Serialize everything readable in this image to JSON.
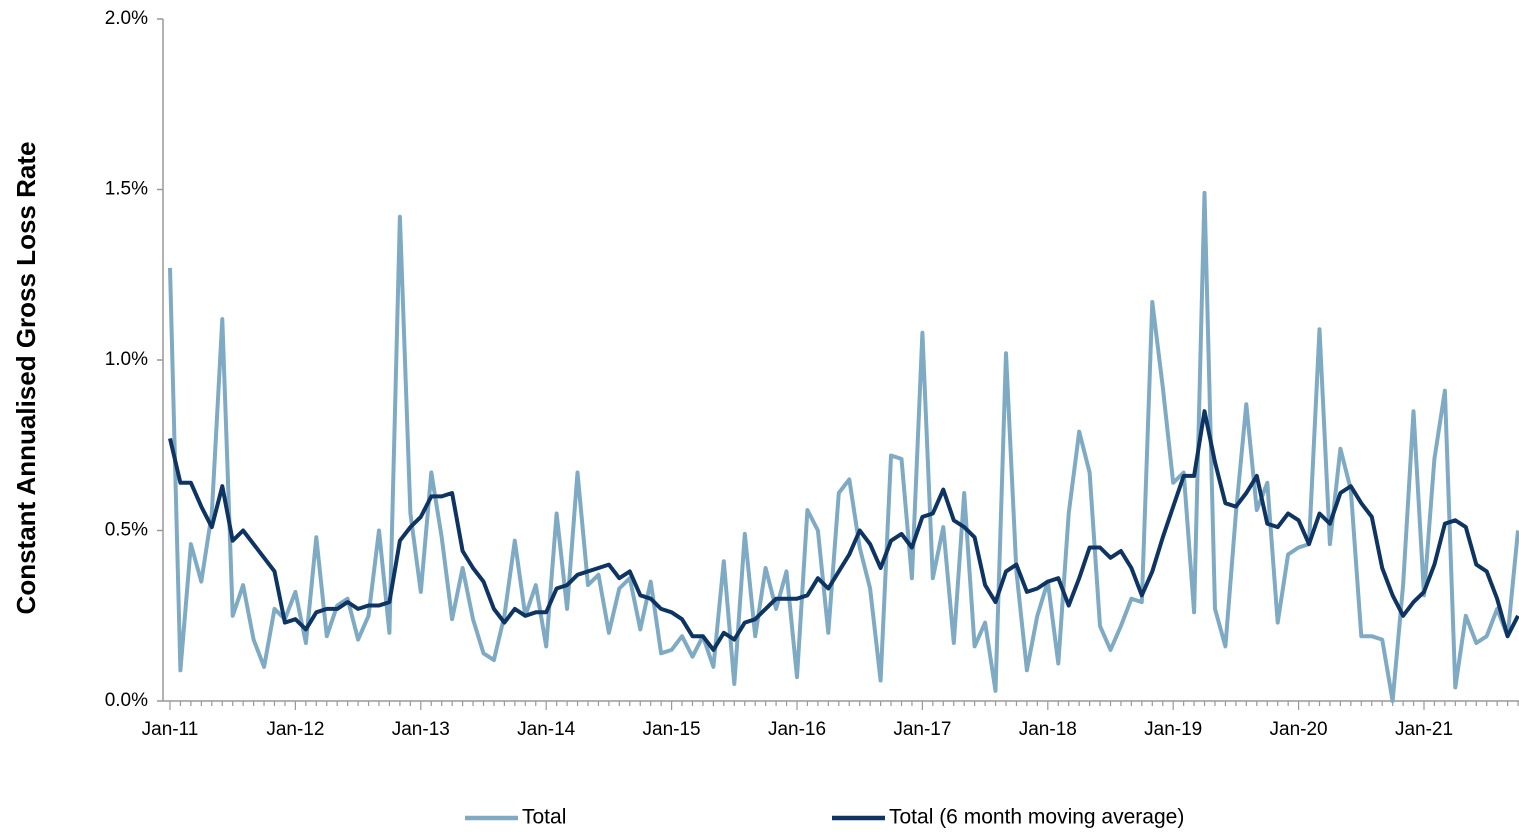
{
  "chart_data": {
    "type": "line",
    "y_label": "Constant Annualised Gross Loss Rate",
    "categories": [
      "Jan-11",
      null,
      null,
      null,
      null,
      null,
      null,
      null,
      null,
      null,
      null,
      null,
      "Jan-12",
      null,
      null,
      null,
      null,
      null,
      null,
      null,
      null,
      null,
      null,
      null,
      "Jan-13",
      null,
      null,
      null,
      null,
      null,
      null,
      null,
      null,
      null,
      null,
      null,
      "Jan-14",
      null,
      null,
      null,
      null,
      null,
      null,
      null,
      null,
      null,
      null,
      null,
      "Jan-15",
      null,
      null,
      null,
      null,
      null,
      null,
      null,
      null,
      null,
      null,
      null,
      "Jan-16",
      null,
      null,
      null,
      null,
      null,
      null,
      null,
      null,
      null,
      null,
      null,
      "Jan-17",
      null,
      null,
      null,
      null,
      null,
      null,
      null,
      null,
      null,
      null,
      null,
      "Jan-18",
      null,
      null,
      null,
      null,
      null,
      null,
      null,
      null,
      null,
      null,
      null,
      "Jan-19",
      null,
      null,
      null,
      null,
      null,
      null,
      null,
      null,
      null,
      null,
      null,
      "Jan-20",
      null,
      null,
      null,
      null,
      null,
      null,
      null,
      null,
      null,
      null,
      null,
      "Jan-21",
      null,
      null,
      null,
      null,
      null,
      null,
      null,
      null,
      null
    ],
    "series": [
      {
        "name": "Total",
        "color": "#7faac4",
        "values": [
          1.27,
          0.09,
          0.46,
          0.35,
          0.55,
          1.12,
          0.25,
          0.34,
          0.18,
          0.1,
          0.27,
          0.24,
          0.32,
          0.17,
          0.48,
          0.19,
          0.28,
          0.3,
          0.18,
          0.25,
          0.5,
          0.2,
          1.42,
          0.55,
          0.32,
          0.67,
          0.48,
          0.24,
          0.39,
          0.24,
          0.14,
          0.12,
          0.25,
          0.47,
          0.25,
          0.34,
          0.16,
          0.55,
          0.27,
          0.67,
          0.34,
          0.37,
          0.2,
          0.33,
          0.36,
          0.21,
          0.35,
          0.14,
          0.15,
          0.19,
          0.13,
          0.19,
          0.1,
          0.41,
          0.05,
          0.49,
          0.19,
          0.39,
          0.27,
          0.38,
          0.07,
          0.56,
          0.5,
          0.2,
          0.61,
          0.65,
          0.45,
          0.33,
          0.06,
          0.72,
          0.71,
          0.36,
          1.08,
          0.36,
          0.51,
          0.17,
          0.61,
          0.16,
          0.23,
          0.03,
          1.02,
          0.38,
          0.09,
          0.25,
          0.35,
          0.11,
          0.55,
          0.79,
          0.67,
          0.22,
          0.15,
          0.22,
          0.3,
          0.29,
          1.17,
          0.92,
          0.64,
          0.67,
          0.26,
          1.49,
          0.27,
          0.16,
          0.55,
          0.87,
          0.56,
          0.64,
          0.23,
          0.43,
          0.45,
          0.46,
          1.09,
          0.46,
          0.74,
          0.62,
          0.19,
          0.19,
          0.18,
          0.0,
          0.34,
          0.85,
          0.31,
          0.71,
          0.91,
          0.04,
          0.25,
          0.17,
          0.19,
          0.27,
          0.19,
          0.5
        ]
      },
      {
        "name": "Total (6 month moving average)",
        "color": "#0d3462",
        "values": [
          0.77,
          0.64,
          0.64,
          0.57,
          0.51,
          0.63,
          0.47,
          0.5,
          0.46,
          0.42,
          0.38,
          0.23,
          0.24,
          0.21,
          0.26,
          0.27,
          0.27,
          0.29,
          0.27,
          0.28,
          0.28,
          0.29,
          0.47,
          0.51,
          0.54,
          0.6,
          0.6,
          0.61,
          0.44,
          0.39,
          0.35,
          0.27,
          0.23,
          0.27,
          0.25,
          0.26,
          0.26,
          0.33,
          0.34,
          0.37,
          0.38,
          0.39,
          0.4,
          0.36,
          0.38,
          0.31,
          0.3,
          0.27,
          0.26,
          0.24,
          0.19,
          0.19,
          0.15,
          0.2,
          0.18,
          0.23,
          0.24,
          0.27,
          0.3,
          0.3,
          0.3,
          0.31,
          0.36,
          0.33,
          0.38,
          0.43,
          0.5,
          0.46,
          0.39,
          0.47,
          0.49,
          0.45,
          0.54,
          0.55,
          0.62,
          0.53,
          0.51,
          0.48,
          0.34,
          0.29,
          0.38,
          0.4,
          0.32,
          0.33,
          0.35,
          0.36,
          0.28,
          0.36,
          0.45,
          0.45,
          0.42,
          0.44,
          0.39,
          0.31,
          0.38,
          0.48,
          0.57,
          0.66,
          0.66,
          0.85,
          0.7,
          0.58,
          0.57,
          0.61,
          0.66,
          0.52,
          0.51,
          0.55,
          0.53,
          0.46,
          0.55,
          0.52,
          0.61,
          0.63,
          0.58,
          0.54,
          0.39,
          0.31,
          0.25,
          0.29,
          0.32,
          0.4,
          0.52,
          0.53,
          0.51,
          0.4,
          0.38,
          0.3,
          0.19,
          0.25
        ]
      }
    ],
    "ylim": [
      0,
      2
    ],
    "yticks": [
      {
        "value": 0,
        "label": "0.0%"
      },
      {
        "value": 0.5,
        "label": "0.5%"
      },
      {
        "value": 1,
        "label": "1.0%"
      },
      {
        "value": 1.5,
        "label": "1.5%"
      },
      {
        "value": 2,
        "label": "2.0%"
      }
    ],
    "legend": "bottom"
  }
}
